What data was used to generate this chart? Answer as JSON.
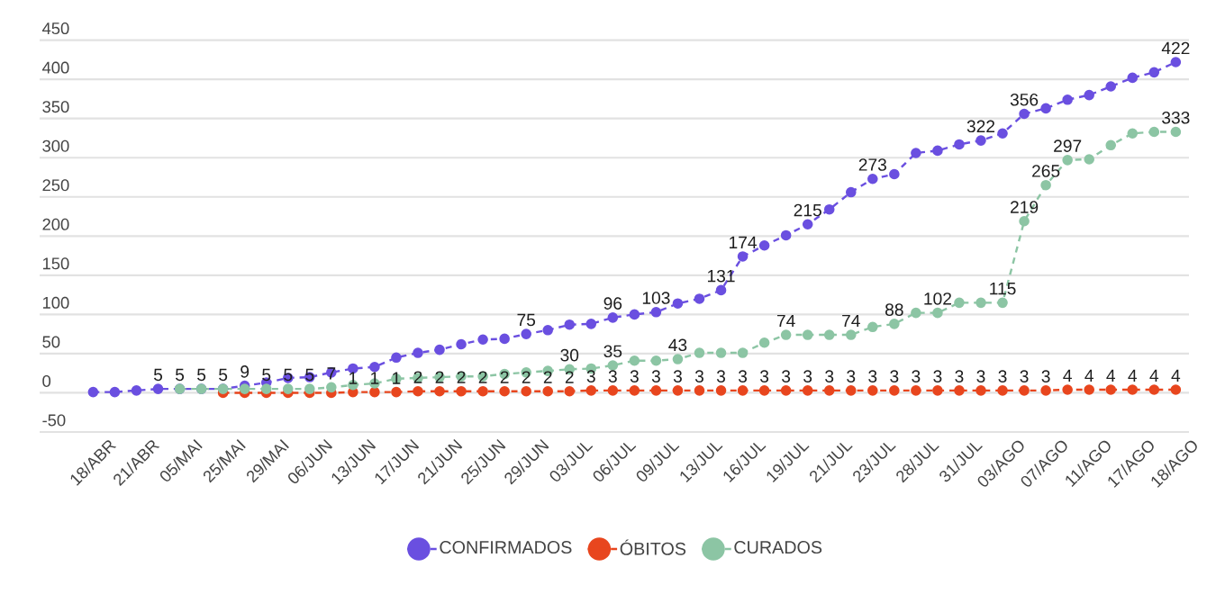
{
  "chart_data": {
    "type": "line",
    "categories": [
      "18/ABR",
      null,
      "21/ABR",
      null,
      "05/MAI",
      null,
      "25/MAI",
      null,
      "29/MAI",
      null,
      "06/JUN",
      null,
      "13/JUN",
      null,
      "17/JUN",
      null,
      "21/JUN",
      null,
      "25/JUN",
      null,
      "29/JUN",
      null,
      "03/JUL",
      null,
      "06/JUL",
      null,
      "09/JUL",
      null,
      "13/JUL",
      null,
      "16/JUL",
      null,
      "19/JUL",
      null,
      "21/JUL",
      null,
      "23/JUL",
      null,
      "28/JUL",
      null,
      "31/JUL",
      null,
      "03/AGO",
      null,
      "07/AGO",
      null,
      "11/AGO",
      null,
      "17/AGO",
      null,
      "18/AGO"
    ],
    "series": [
      {
        "name": "CONFIRMADOS",
        "color": "#6a4fe0",
        "values": [
          1,
          1,
          3,
          5,
          5,
          5,
          5,
          9,
          13,
          19,
          20,
          26,
          31,
          33,
          45,
          51,
          55,
          62,
          68,
          69,
          75,
          80,
          87,
          88,
          96,
          100,
          103,
          114,
          120,
          131,
          174,
          188,
          201,
          215,
          234,
          256,
          273,
          279,
          306,
          309,
          317,
          322,
          331,
          356,
          363,
          374,
          380,
          391,
          402,
          409,
          422
        ],
        "value_labels": [
          null,
          null,
          null,
          "5",
          "5",
          "5",
          "5",
          "9",
          null,
          null,
          null,
          null,
          null,
          null,
          null,
          null,
          null,
          null,
          null,
          null,
          "75",
          null,
          null,
          null,
          "96",
          null,
          "103",
          null,
          null,
          "131",
          "174",
          null,
          null,
          "215",
          null,
          null,
          "273",
          null,
          null,
          null,
          null,
          "322",
          null,
          "356",
          null,
          null,
          null,
          null,
          null,
          null,
          "422"
        ]
      },
      {
        "name": "ÓBITOS",
        "color": "#e8461e",
        "values": [
          null,
          null,
          null,
          null,
          null,
          null,
          0,
          0,
          0,
          0,
          0,
          0,
          1,
          1,
          1,
          2,
          2,
          2,
          2,
          2,
          2,
          2,
          2,
          3,
          3,
          3,
          3,
          3,
          3,
          3,
          3,
          3,
          3,
          3,
          3,
          3,
          3,
          3,
          3,
          3,
          3,
          3,
          3,
          3,
          3,
          4,
          4,
          4,
          4,
          4,
          4
        ],
        "value_labels": [
          null,
          null,
          null,
          null,
          null,
          null,
          null,
          null,
          null,
          null,
          null,
          null,
          "1",
          "1",
          "1",
          "2",
          "2",
          "2",
          "2",
          "2",
          "2",
          "2",
          "2",
          "3",
          "3",
          "3",
          "3",
          "3",
          "3",
          "3",
          "3",
          "3",
          "3",
          "3",
          "3",
          "3",
          "3",
          "3",
          "3",
          "3",
          "3",
          "3",
          "3",
          "3",
          "3",
          "4",
          "4",
          "4",
          "4",
          "4",
          "4"
        ]
      },
      {
        "name": "CURADOS",
        "color": "#8cc5a4",
        "values": [
          null,
          null,
          null,
          null,
          5,
          5,
          5,
          5,
          5,
          5,
          5,
          7,
          10,
          12,
          18,
          19,
          20,
          21,
          21,
          24,
          26,
          28,
          30,
          31,
          35,
          41,
          41,
          43,
          51,
          51,
          51,
          64,
          74,
          74,
          74,
          74,
          84,
          88,
          102,
          102,
          115,
          115,
          115,
          219,
          265,
          297,
          298,
          316,
          331,
          333,
          333
        ],
        "value_labels": [
          null,
          null,
          null,
          null,
          null,
          null,
          null,
          null,
          "5",
          "5",
          "5",
          "7",
          null,
          null,
          null,
          null,
          null,
          null,
          null,
          null,
          null,
          null,
          "30",
          null,
          "35",
          null,
          null,
          "43",
          null,
          null,
          null,
          null,
          "74",
          null,
          null,
          "74",
          null,
          "88",
          null,
          "102",
          null,
          null,
          "115",
          "219",
          "265",
          "297",
          null,
          null,
          null,
          null,
          "333"
        ]
      }
    ],
    "ylim": [
      -50,
      450
    ],
    "yticks": [
      -50,
      0,
      50,
      100,
      150,
      200,
      250,
      300,
      350,
      400,
      450
    ],
    "grid": "y",
    "legend": "bottom",
    "marker": "circle",
    "line_style": "dashed"
  }
}
